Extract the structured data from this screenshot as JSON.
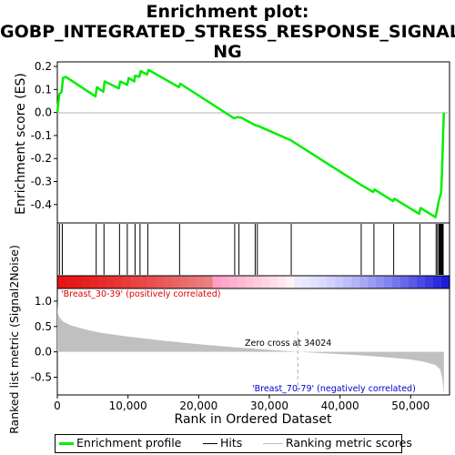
{
  "title": {
    "lines": [
      "Enrichment plot:",
      "GOBP_INTEGRATED_STRESS_RESPONSE_SIGNALI",
      "NG"
    ]
  },
  "colors": {
    "es_line": "#00ee00",
    "hit": "#000000",
    "metric_fill": "#c0c0c0",
    "pos_label": "#dd0000",
    "neg_label": "#0000cc",
    "zero_cross_line": "#aaaaaa"
  },
  "chart_data": [
    {
      "type": "line",
      "name": "enrichment-score",
      "ylabel": "Enrichment score (ES)",
      "ylim": [
        -0.48,
        0.22
      ],
      "xlim": [
        0,
        55500
      ],
      "yticks": [
        "0.2",
        "0.1",
        "0.0",
        "-0.1",
        "-0.2",
        "-0.3",
        "-0.4"
      ],
      "ytick_values": [
        0.2,
        0.1,
        0.0,
        -0.1,
        -0.2,
        -0.3,
        -0.4
      ],
      "grid": false,
      "points": [
        [
          0,
          0.0
        ],
        [
          100,
          0.03
        ],
        [
          300,
          0.08
        ],
        [
          600,
          0.09
        ],
        [
          800,
          0.15
        ],
        [
          1200,
          0.155
        ],
        [
          5400,
          0.07
        ],
        [
          5600,
          0.11
        ],
        [
          6500,
          0.09
        ],
        [
          6700,
          0.135
        ],
        [
          8700,
          0.105
        ],
        [
          8900,
          0.135
        ],
        [
          9900,
          0.12
        ],
        [
          10100,
          0.15
        ],
        [
          10900,
          0.135
        ],
        [
          11000,
          0.16
        ],
        [
          11600,
          0.155
        ],
        [
          11800,
          0.18
        ],
        [
          12700,
          0.165
        ],
        [
          12900,
          0.185
        ],
        [
          17200,
          0.11
        ],
        [
          17400,
          0.125
        ],
        [
          25000,
          -0.025
        ],
        [
          25500,
          -0.02
        ],
        [
          26000,
          -0.022
        ],
        [
          28000,
          -0.055
        ],
        [
          28400,
          -0.058
        ],
        [
          33000,
          -0.12
        ],
        [
          43000,
          -0.315
        ],
        [
          44700,
          -0.345
        ],
        [
          44900,
          -0.335
        ],
        [
          47500,
          -0.385
        ],
        [
          47700,
          -0.375
        ],
        [
          51200,
          -0.44
        ],
        [
          51400,
          -0.415
        ],
        [
          53500,
          -0.455
        ],
        [
          53700,
          -0.43
        ],
        [
          54000,
          -0.38
        ],
        [
          54300,
          -0.35
        ],
        [
          54400,
          -0.28
        ],
        [
          54500,
          -0.2
        ],
        [
          54600,
          -0.08
        ],
        [
          54700,
          0.0
        ]
      ],
      "hits": [
        300,
        700,
        5500,
        6600,
        8800,
        9900,
        11000,
        11700,
        12800,
        17300,
        25100,
        25700,
        28000,
        28300,
        33100,
        43000,
        44800,
        47600,
        51300,
        53600,
        53800,
        54000,
        54100,
        54200,
        54300,
        54400,
        54500,
        54600
      ]
    },
    {
      "type": "area",
      "name": "ranked-list-metric",
      "ylabel": "Ranked list metric (Signal2Noise)",
      "xlabel": "Rank in Ordered Dataset",
      "ylim": [
        -0.85,
        1.25
      ],
      "xlim": [
        0,
        55500
      ],
      "yticks": [
        "1.0",
        "0.5",
        "0.0",
        "-0.5"
      ],
      "ytick_values": [
        1.0,
        0.5,
        0.0,
        -0.5
      ],
      "xticks": [
        "0",
        "10,000",
        "20,000",
        "30,000",
        "40,000",
        "50,000"
      ],
      "xtick_values": [
        0,
        10000,
        20000,
        30000,
        40000,
        50000
      ],
      "zero_cross": 34024,
      "annotations": {
        "zero_cross": "Zero cross at 34024",
        "positive": "'Breast_30-39' (positively correlated)",
        "negative": "'Breast_70-79' (negatively correlated)"
      },
      "points": [
        [
          0,
          0.95
        ],
        [
          100,
          0.75
        ],
        [
          300,
          0.68
        ],
        [
          800,
          0.6
        ],
        [
          2000,
          0.52
        ],
        [
          4000,
          0.44
        ],
        [
          6000,
          0.38
        ],
        [
          10000,
          0.3
        ],
        [
          15000,
          0.22
        ],
        [
          20000,
          0.15
        ],
        [
          25000,
          0.09
        ],
        [
          30000,
          0.04
        ],
        [
          34024,
          0.0
        ],
        [
          38000,
          -0.03
        ],
        [
          42000,
          -0.06
        ],
        [
          46000,
          -0.1
        ],
        [
          50000,
          -0.15
        ],
        [
          52000,
          -0.2
        ],
        [
          53500,
          -0.26
        ],
        [
          54200,
          -0.35
        ],
        [
          54500,
          -0.55
        ],
        [
          54700,
          -0.85
        ]
      ]
    }
  ],
  "legend": {
    "items": [
      {
        "label": "Enrichment profile",
        "color": "#00ee00",
        "kind": "thick-line"
      },
      {
        "label": "Hits",
        "color": "#000000",
        "kind": "line"
      },
      {
        "label": "Ranking metric scores",
        "color": "#c0c0c0",
        "kind": "line"
      }
    ]
  }
}
